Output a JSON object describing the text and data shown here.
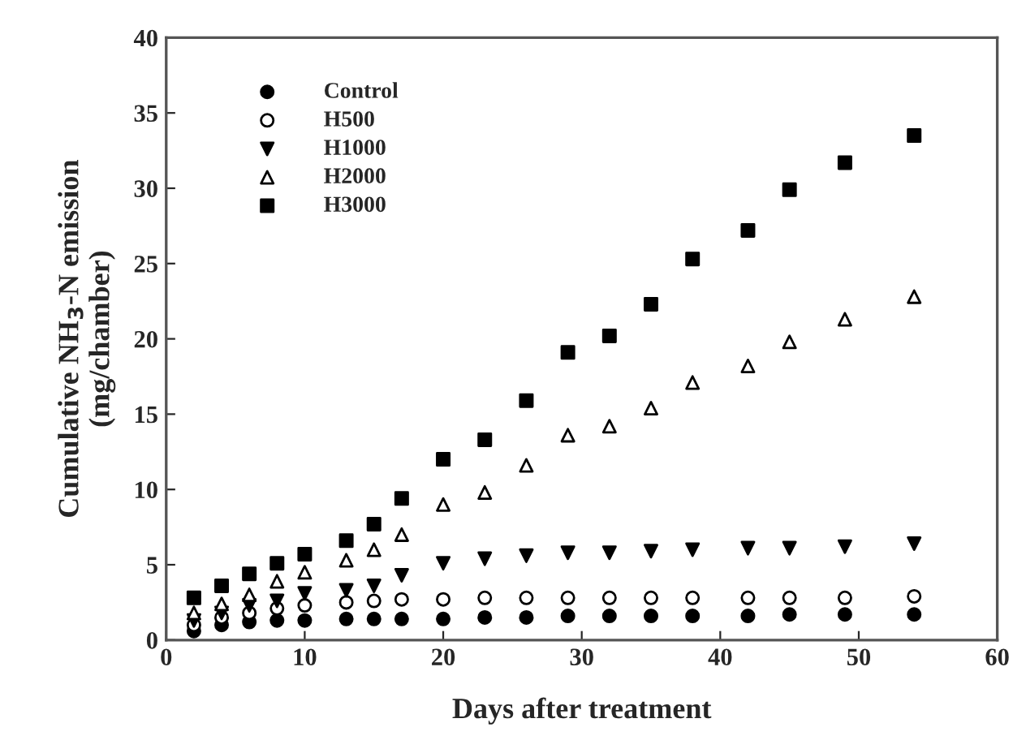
{
  "chart_data": {
    "type": "scatter",
    "xlabel": "Days after treatment",
    "ylabel": "Cumulative NH$_{3}$-N emission\n(mg/chamber)",
    "x": [
      2,
      4,
      6,
      8,
      10,
      13,
      15,
      17,
      20,
      23,
      26,
      29,
      32,
      35,
      38,
      42,
      45,
      49,
      54
    ],
    "series": [
      {
        "name": "Control",
        "color": "#000000",
        "marker": "circle",
        "values": [
          0.6,
          1.0,
          1.2,
          1.3,
          1.3,
          1.4,
          1.4,
          1.4,
          1.4,
          1.5,
          1.5,
          1.6,
          1.6,
          1.6,
          1.6,
          1.6,
          1.7,
          1.7,
          1.7
        ]
      },
      {
        "name": "H500",
        "color": "#ffffff",
        "marker": "circle",
        "values": [
          1.0,
          1.5,
          1.8,
          2.1,
          2.3,
          2.5,
          2.6,
          2.7,
          2.7,
          2.8,
          2.8,
          2.8,
          2.8,
          2.8,
          2.8,
          2.8,
          2.8,
          2.8,
          2.9
        ]
      },
      {
        "name": "H1000",
        "color": "#000000",
        "marker": "triangle_down",
        "values": [
          1.3,
          1.8,
          2.3,
          2.6,
          3.1,
          3.3,
          3.6,
          4.3,
          5.1,
          5.4,
          5.6,
          5.8,
          5.8,
          5.9,
          6.0,
          6.1,
          6.1,
          6.2,
          6.4
        ]
      },
      {
        "name": "H2000",
        "color": "#ffffff",
        "marker": "triangle",
        "values": [
          1.8,
          2.4,
          3.0,
          3.9,
          4.5,
          5.3,
          6.0,
          7.0,
          9.0,
          9.8,
          11.6,
          13.6,
          14.2,
          15.4,
          17.1,
          18.2,
          19.8,
          21.3,
          22.8
        ]
      },
      {
        "name": "H3000",
        "color": "#000000",
        "marker": "square",
        "values": [
          2.8,
          3.6,
          4.4,
          5.1,
          5.7,
          6.6,
          7.7,
          9.4,
          12.0,
          13.3,
          15.9,
          19.1,
          20.2,
          22.3,
          25.3,
          27.2,
          29.9,
          31.7,
          33.5
        ]
      }
    ],
    "xlim": [
      0,
      60
    ],
    "xticks": [
      0,
      10,
      20,
      30,
      40,
      50,
      60
    ],
    "ylim": [
      0,
      40
    ],
    "yticks": [
      0,
      5,
      10,
      15,
      20,
      25,
      30,
      35,
      40
    ],
    "grid": false,
    "legend": "top left"
  }
}
